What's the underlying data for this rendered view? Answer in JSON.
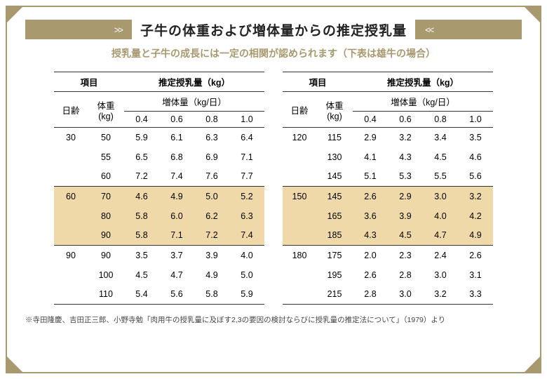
{
  "title": "子牛の体重および増体量からの推定授乳量",
  "subtitle": "授乳量と子牛の成長には一定の相関が認められます（下表は雄牛の場合）",
  "chevL": ">>",
  "chevR": "<<",
  "headers": {
    "item": "項目",
    "est": "推定授乳量（kg）",
    "age": "日齢",
    "weight": "体重\n(kg)",
    "gain": "増体量（kg/日）",
    "gain_cols": [
      "0.4",
      "0.6",
      "0.8",
      "1.0"
    ]
  },
  "left": [
    {
      "age": "30",
      "hl": false,
      "rows": [
        {
          "wt": "50",
          "v": [
            "5.9",
            "6.1",
            "6.3",
            "6.4"
          ]
        },
        {
          "wt": "55",
          "v": [
            "6.5",
            "6.8",
            "6.9",
            "7.1"
          ]
        },
        {
          "wt": "60",
          "v": [
            "7.2",
            "7.4",
            "7.6",
            "7.7"
          ]
        }
      ]
    },
    {
      "age": "60",
      "hl": true,
      "rows": [
        {
          "wt": "70",
          "v": [
            "4.6",
            "4.9",
            "5.0",
            "5.2"
          ]
        },
        {
          "wt": "80",
          "v": [
            "5.8",
            "6.0",
            "6.2",
            "6.3"
          ]
        },
        {
          "wt": "90",
          "v": [
            "5.8",
            "7.1",
            "7.2",
            "7.4"
          ]
        }
      ]
    },
    {
      "age": "90",
      "hl": false,
      "rows": [
        {
          "wt": "90",
          "v": [
            "3.5",
            "3.7",
            "3.9",
            "4.0"
          ]
        },
        {
          "wt": "100",
          "v": [
            "4.5",
            "4.7",
            "4.9",
            "5.0"
          ]
        },
        {
          "wt": "110",
          "v": [
            "5.4",
            "5.6",
            "5.8",
            "5.9"
          ]
        }
      ]
    }
  ],
  "right": [
    {
      "age": "120",
      "hl": false,
      "rows": [
        {
          "wt": "115",
          "v": [
            "2.9",
            "3.2",
            "3.4",
            "3.5"
          ]
        },
        {
          "wt": "130",
          "v": [
            "4.1",
            "4.3",
            "4.5",
            "4.6"
          ]
        },
        {
          "wt": "145",
          "v": [
            "5.1",
            "5.3",
            "5.5",
            "5.6"
          ]
        }
      ]
    },
    {
      "age": "150",
      "hl": true,
      "rows": [
        {
          "wt": "145",
          "v": [
            "2.6",
            "2.9",
            "3.0",
            "3.2"
          ]
        },
        {
          "wt": "165",
          "v": [
            "3.6",
            "3.9",
            "4.0",
            "4.2"
          ]
        },
        {
          "wt": "185",
          "v": [
            "4.3",
            "4.5",
            "4.7",
            "4.9"
          ]
        }
      ]
    },
    {
      "age": "180",
      "hl": false,
      "rows": [
        {
          "wt": "175",
          "v": [
            "2.0",
            "2.3",
            "2.4",
            "2.6"
          ]
        },
        {
          "wt": "195",
          "v": [
            "2.6",
            "2.8",
            "3.0",
            "3.1"
          ]
        },
        {
          "wt": "215",
          "v": [
            "2.8",
            "3.0",
            "3.2",
            "3.3"
          ]
        }
      ]
    }
  ],
  "footnote": "※寺田隆慶、吉田正三郎、小野寺勉「肉用牛の授乳量に及ぼす2,3の要因の検討ならびに授乳量の推定法について」（1979）より",
  "colors": {
    "accent": "#a8996e",
    "highlight": "#f0d9a8",
    "text": "#222222",
    "border": "#333333",
    "background": "#ffffff"
  }
}
